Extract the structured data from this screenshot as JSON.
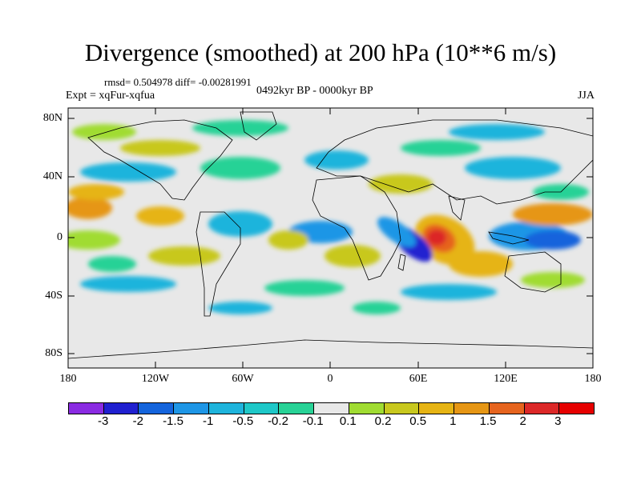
{
  "title": "Divergence (smoothed) at 200 hPa (10**6 m/s)",
  "stats": "rmsd= 0.504978 diff= -0.00281991",
  "experiment": "Expt = xqFur-xqfua",
  "period": "0492kyr BP - 0000kyr BP",
  "season": "JJA",
  "lat_labels": [
    "80N",
    "40N",
    "0",
    "40S",
    "80S"
  ],
  "lon_labels": [
    "180",
    "120W",
    "60W",
    "0",
    "60E",
    "120E",
    "180"
  ],
  "colorbar": {
    "labels": [
      "-3",
      "-2",
      "-1.5",
      "-1",
      "-0.5",
      "-0.2",
      "-0.1",
      "0.1",
      "0.2",
      "0.5",
      "1",
      "1.5",
      "2",
      "3"
    ],
    "colors": [
      "#8a2be2",
      "#2020d0",
      "#1464dc",
      "#1e96e6",
      "#1eb4dc",
      "#1ec8c8",
      "#28d296",
      "#e8e8e8",
      "#a0dc32",
      "#c8c81e",
      "#e6b414",
      "#e69614",
      "#e6641e",
      "#dc2828",
      "#e60000"
    ]
  },
  "palette": {
    "neutral": "#e8e8e8",
    "coast": "#000000"
  }
}
